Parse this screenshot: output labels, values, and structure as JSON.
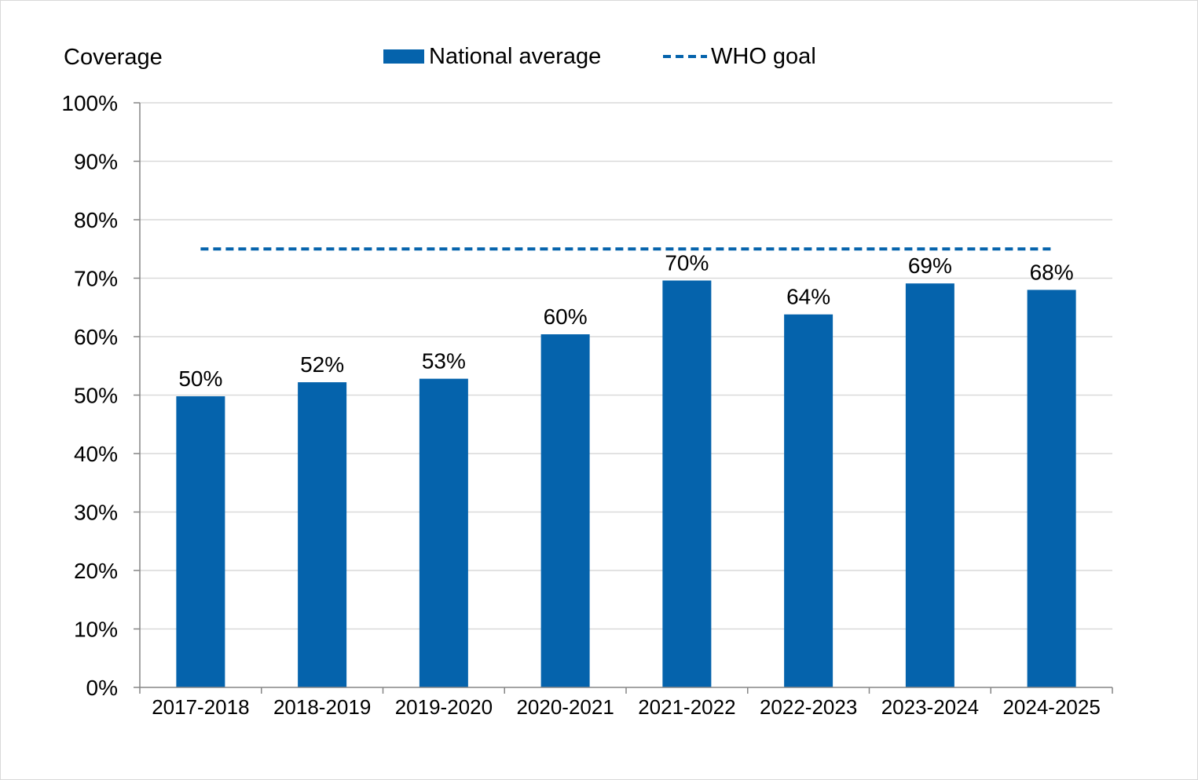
{
  "chart_data": {
    "type": "bar",
    "ylabel": "Coverage",
    "categories": [
      "2017-2018",
      "2018-2019",
      "2019-2020",
      "2020-2021",
      "2021-2022",
      "2022-2023",
      "2023-2024",
      "2024-2025"
    ],
    "series": [
      {
        "name": "National average",
        "values": [
          50,
          52,
          53,
          60,
          70,
          64,
          69,
          68
        ],
        "labels": [
          "50%",
          "52%",
          "53%",
          "60%",
          "70%",
          "64%",
          "69%",
          "68%"
        ],
        "plotted": [
          49.8,
          52.2,
          52.8,
          60.4,
          69.6,
          63.8,
          69.1,
          68.0
        ],
        "color": "#0563ac"
      }
    ],
    "reference_line": {
      "name": "WHO goal",
      "value": 75,
      "style": "dashed",
      "color": "#0563ac"
    },
    "ylim": [
      0,
      100
    ],
    "yticks": [
      "0%",
      "10%",
      "20%",
      "30%",
      "40%",
      "50%",
      "60%",
      "70%",
      "80%",
      "90%",
      "100%"
    ],
    "grid": true,
    "legend_position": "top"
  }
}
